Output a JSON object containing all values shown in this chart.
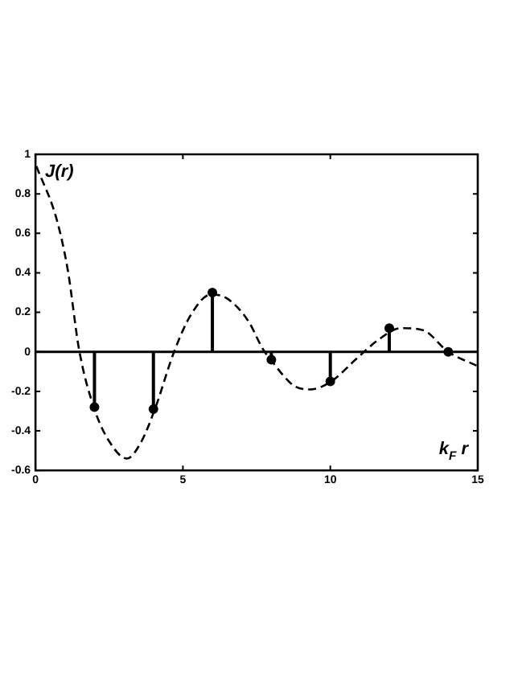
{
  "chart_data": {
    "type": "line",
    "xlabel": "k$_{F}$ r",
    "ylabel": "J(r)",
    "xlim": [
      0,
      15
    ],
    "ylim": [
      -0.6,
      1
    ],
    "xticks": [
      0,
      5,
      10,
      15
    ],
    "yticks": [
      -0.6,
      -0.4,
      -0.2,
      0,
      0.2,
      0.4,
      0.6,
      0.8,
      1
    ],
    "grid": false,
    "legend": false,
    "ref_lines": [
      {
        "axis": "y",
        "value": 0,
        "color": "#000000",
        "line_style": "solid"
      }
    ],
    "series": [
      {
        "color": "#000000",
        "line_style": "dashed",
        "marker": "none",
        "x": [
          0.03,
          0.72,
          1.1,
          1.48,
          2.0,
          2.53,
          3.1,
          3.57,
          4.05,
          4.7,
          5.28,
          5.95,
          6.5,
          7.2,
          7.73,
          7.98,
          8.75,
          9.32,
          10.03,
          10.85,
          11.62,
          12.38,
          13.14,
          14.0,
          14.96
        ],
        "values": [
          0.94,
          0.67,
          0.41,
          0.01,
          -0.29,
          -0.46,
          -0.54,
          -0.46,
          -0.29,
          0,
          0.19,
          0.29,
          0.27,
          0.16,
          0.01,
          -0.04,
          -0.17,
          -0.19,
          -0.15,
          -0.04,
          0.06,
          0.12,
          0.11,
          0,
          -0.07
        ]
      },
      {
        "type": "lollipop",
        "color": "#000000",
        "marker": "circle",
        "x": [
          2,
          4,
          6,
          8,
          10,
          12,
          14
        ],
        "values": [
          -0.28,
          -0.29,
          0.3,
          -0.04,
          -0.15,
          0.12,
          0
        ]
      }
    ]
  }
}
